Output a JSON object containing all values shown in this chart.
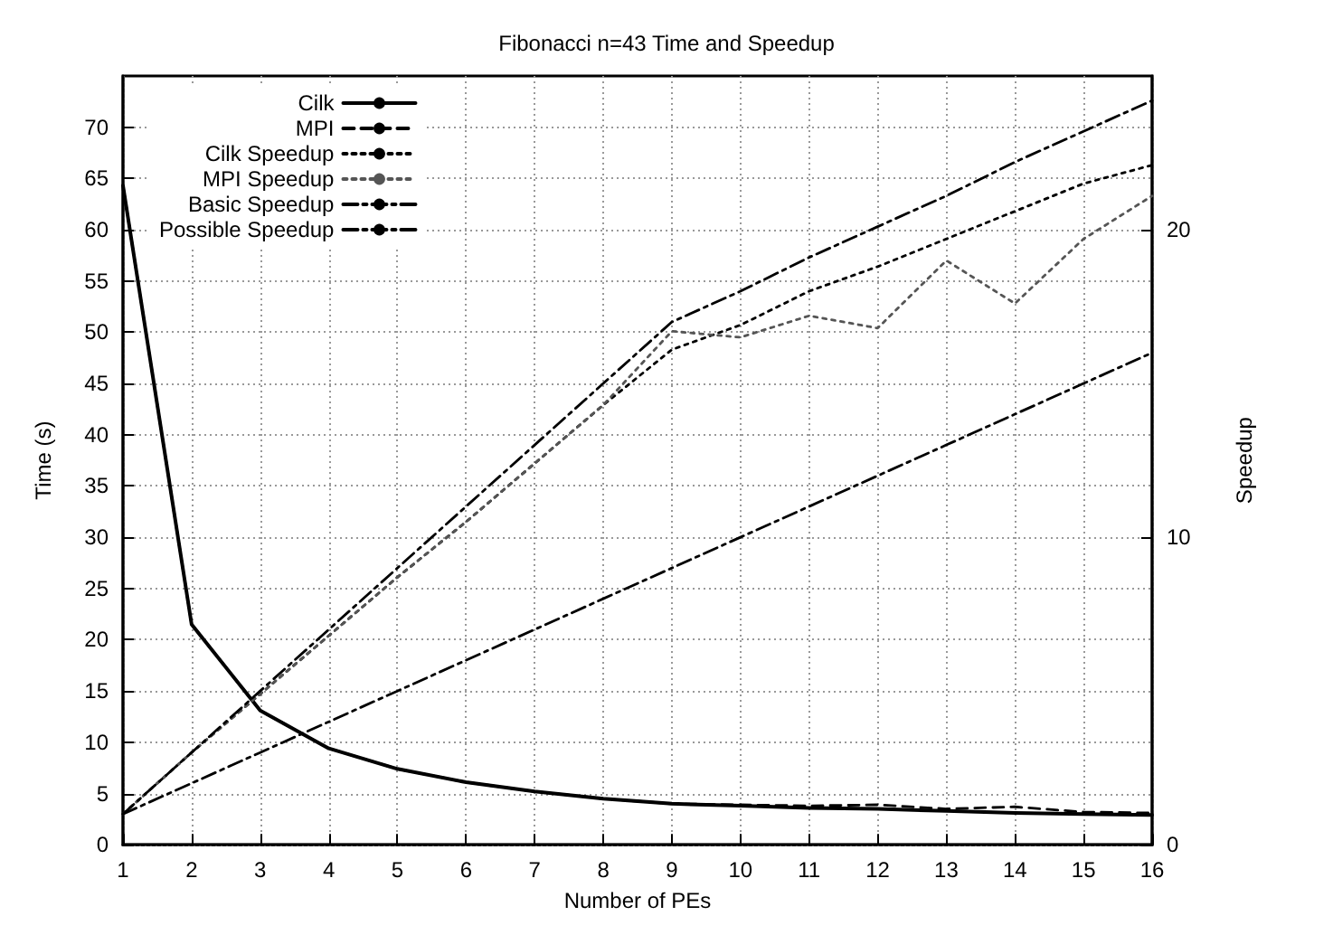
{
  "chart_data": {
    "type": "line",
    "title": "Fibonacci n=43 Time and Speedup",
    "xlabel": "Number of PEs",
    "ylabel": "Time (s)",
    "y2label": "Speedup",
    "x": [
      1,
      2,
      3,
      4,
      5,
      6,
      7,
      8,
      9,
      10,
      11,
      12,
      13,
      14,
      15,
      16
    ],
    "xlim": [
      1,
      16
    ],
    "xticks": [
      1,
      2,
      3,
      4,
      5,
      6,
      7,
      8,
      9,
      10,
      11,
      12,
      13,
      14,
      15,
      16
    ],
    "ylim": [
      0,
      75
    ],
    "yticks": [
      0,
      5,
      10,
      15,
      20,
      25,
      30,
      35,
      40,
      45,
      50,
      55,
      60,
      65,
      70
    ],
    "y2lim": [
      0,
      25
    ],
    "y2ticks": [
      0,
      10,
      20
    ],
    "grid": true,
    "legend": "top left",
    "marker": "none",
    "series": [
      {
        "name": "Cilk",
        "color": "#000000",
        "line_style": "solid",
        "values": [
          64.3,
          21.5,
          13.1,
          9.4,
          7.4,
          6.1,
          5.2,
          4.5,
          4.0,
          3.8,
          3.6,
          3.5,
          3.3,
          3.1,
          3.0,
          2.9
        ]
      },
      {
        "name": "MPI",
        "color": "#000000",
        "line_style": "dashed",
        "values": [
          64.3,
          21.5,
          13.1,
          9.4,
          7.4,
          6.1,
          5.2,
          4.5,
          4.0,
          3.9,
          3.8,
          3.9,
          3.5,
          3.7,
          3.2,
          3.1
        ]
      },
      {
        "name": "Cilk Speedup",
        "color": "#000000",
        "line_style": "dotted",
        "axis": "y2",
        "values": [
          1,
          3.0,
          4.9,
          6.8,
          8.7,
          10.5,
          12.4,
          14.3,
          16.1,
          16.9,
          18.0,
          18.8,
          19.7,
          20.6,
          21.5,
          22.1
        ]
      },
      {
        "name": "MPI Speedup",
        "color": "#555555",
        "line_style": "dotted",
        "axis": "y2",
        "values": [
          1,
          3.0,
          4.9,
          6.8,
          8.7,
          10.5,
          12.4,
          14.3,
          16.7,
          16.5,
          17.2,
          16.8,
          19.0,
          17.6,
          19.7,
          21.1
        ]
      },
      {
        "name": "Basic Speedup",
        "color": "#000000",
        "line_style": "dashdot",
        "axis": "y2",
        "values": [
          1,
          2,
          3,
          4,
          5,
          6,
          7,
          8,
          9,
          10,
          11,
          12,
          13,
          14,
          15,
          16
        ]
      },
      {
        "name": "Possible Speedup",
        "color": "#000000",
        "line_style": "dashdot",
        "axis": "y2",
        "values": [
          1,
          3,
          5,
          7,
          9,
          11,
          13,
          15,
          17,
          18.0,
          19.1,
          20.1,
          21.1,
          22.2,
          23.2,
          24.2
        ]
      }
    ]
  }
}
